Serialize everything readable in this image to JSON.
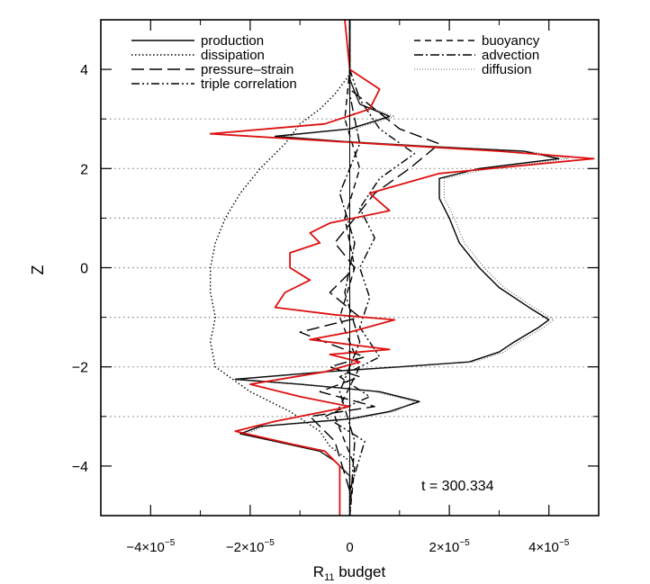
{
  "chart_data": {
    "type": "line",
    "xlabel": "R",
    "xlabel_sub": "11",
    "xlabel_rest": " budget",
    "ylabel": "Z",
    "xlim": [
      -5e-05,
      5e-05
    ],
    "ylim": [
      -5,
      5
    ],
    "x_ticks": [
      {
        "value": -4e-05,
        "label": "−4×10",
        "exp": "−5"
      },
      {
        "value": -2e-05,
        "label": "−2×10",
        "exp": "−5"
      },
      {
        "value": 0,
        "label": "0",
        "exp": ""
      },
      {
        "value": 2e-05,
        "label": "2×10",
        "exp": "−5"
      },
      {
        "value": 4e-05,
        "label": "4×10",
        "exp": "−5"
      }
    ],
    "y_ticks": [
      {
        "value": -4,
        "label": "−4"
      },
      {
        "value": -2,
        "label": "−2"
      },
      {
        "value": 0,
        "label": "0"
      },
      {
        "value": 2,
        "label": "2"
      },
      {
        "value": 4,
        "label": "4"
      }
    ],
    "hgrid_y": [
      3,
      2,
      1,
      0,
      -1,
      -2,
      -3
    ],
    "annotation": "t = 300.334",
    "legend_left": [
      "production",
      "dissipation",
      "pressure–strain",
      "triple correlation"
    ],
    "legend_right": [
      "buoyancy",
      "advection",
      "diffusion"
    ],
    "series": [
      {
        "name": "production",
        "style": "solid",
        "color": "#000000",
        "points": [
          [
            0,
            -5
          ],
          [
            0,
            -4.2
          ],
          [
            -3e-06,
            -3.9
          ],
          [
            -6e-06,
            -3.7
          ],
          [
            -1.5e-05,
            -3.5
          ],
          [
            -2.2e-05,
            -3.35
          ],
          [
            -1.8e-05,
            -3.2
          ],
          [
            0,
            -3.05
          ],
          [
            8e-06,
            -2.9
          ],
          [
            1.4e-05,
            -2.7
          ],
          [
            6e-06,
            -2.5
          ],
          [
            -1e-05,
            -2.35
          ],
          [
            -2.3e-05,
            -2.25
          ],
          [
            -5e-06,
            -2.1
          ],
          [
            1e-05,
            -2.0
          ],
          [
            2.4e-05,
            -1.9
          ],
          [
            3e-05,
            -1.7
          ],
          [
            3.3e-05,
            -1.5
          ],
          [
            3.8e-05,
            -1.2
          ],
          [
            4e-05,
            -1.05
          ],
          [
            3.6e-05,
            -0.8
          ],
          [
            3e-05,
            -0.4
          ],
          [
            2.6e-05,
            0
          ],
          [
            2.2e-05,
            0.5
          ],
          [
            2e-05,
            1.0
          ],
          [
            1.8e-05,
            1.4
          ],
          [
            1.8e-05,
            1.8
          ],
          [
            2.6e-05,
            2.0
          ],
          [
            4.2e-05,
            2.2
          ],
          [
            3.5e-05,
            2.35
          ],
          [
            1.5e-05,
            2.45
          ],
          [
            -2e-06,
            2.55
          ],
          [
            -1.5e-05,
            2.65
          ],
          [
            0,
            2.8
          ],
          [
            8e-06,
            3.05
          ],
          [
            2e-06,
            3.3
          ],
          [
            0,
            3.8
          ],
          [
            0,
            5
          ]
        ]
      },
      {
        "name": "dissipation",
        "style": "dotted",
        "color": "#000000",
        "points": [
          [
            0,
            -5
          ],
          [
            0,
            -3.9
          ],
          [
            -4e-06,
            -3.6
          ],
          [
            -6e-06,
            -3.3
          ],
          [
            -1.2e-05,
            -2.9
          ],
          [
            -2e-05,
            -2.5
          ],
          [
            -2.7e-05,
            -2.0
          ],
          [
            -2.8e-05,
            -1.5
          ],
          [
            -2.7e-05,
            -1.0
          ],
          [
            -2.8e-05,
            -0.5
          ],
          [
            -2.8e-05,
            0
          ],
          [
            -2.7e-05,
            0.5
          ],
          [
            -2.5e-05,
            1.0
          ],
          [
            -2.2e-05,
            1.5
          ],
          [
            -1.8e-05,
            2.0
          ],
          [
            -1.3e-05,
            2.5
          ],
          [
            -1e-05,
            2.9
          ],
          [
            -6e-06,
            3.2
          ],
          [
            -3e-06,
            3.5
          ],
          [
            0,
            3.9
          ],
          [
            0,
            5
          ]
        ]
      },
      {
        "name": "pressure–strain",
        "style": "longdash",
        "color": "#000000",
        "points": [
          [
            0,
            -4.5
          ],
          [
            -3e-06,
            -3.5
          ],
          [
            -8e-06,
            -3.0
          ],
          [
            5e-06,
            -2.8
          ],
          [
            -6e-06,
            -2.5
          ],
          [
            2e-06,
            -2.2
          ],
          [
            -4e-06,
            -2.0
          ],
          [
            3e-06,
            -1.8
          ],
          [
            -5e-06,
            -1.5
          ],
          [
            -1e-05,
            -1.3
          ],
          [
            2e-06,
            -1.0
          ],
          [
            -4e-06,
            -0.5
          ],
          [
            1e-06,
            0
          ],
          [
            -3e-06,
            0.5
          ],
          [
            1e-06,
            1.0
          ],
          [
            5e-06,
            1.5
          ],
          [
            1.2e-05,
            2.0
          ],
          [
            1.8e-05,
            2.5
          ],
          [
            1e-05,
            2.8
          ],
          [
            5e-06,
            3.2
          ],
          [
            0,
            3.6
          ],
          [
            0,
            5
          ]
        ]
      },
      {
        "name": "triple correlation",
        "style": "dashdotdot",
        "color": "#000000",
        "points": [
          [
            0,
            -4.5
          ],
          [
            3e-06,
            -3.5
          ],
          [
            -5e-06,
            -3.0
          ],
          [
            4e-06,
            -2.6
          ],
          [
            -2e-06,
            -2.2
          ],
          [
            6e-06,
            -1.8
          ],
          [
            2e-06,
            -1.2
          ],
          [
            4e-06,
            -0.6
          ],
          [
            2e-06,
            0
          ],
          [
            5e-06,
            0.6
          ],
          [
            2e-06,
            1.2
          ],
          [
            6e-06,
            1.8
          ],
          [
            1.3e-05,
            2.3
          ],
          [
            6e-06,
            2.8
          ],
          [
            2e-06,
            3.4
          ],
          [
            0,
            4.0
          ],
          [
            0,
            5
          ]
        ]
      },
      {
        "name": "buoyancy",
        "style": "dashed",
        "color": "#000000",
        "points": [
          [
            0,
            -5
          ],
          [
            1e-06,
            -4
          ],
          [
            -3e-06,
            -3
          ],
          [
            2e-06,
            -2
          ],
          [
            -2e-06,
            -1
          ],
          [
            1e-06,
            0
          ],
          [
            -1e-06,
            1
          ],
          [
            2e-06,
            2
          ],
          [
            -1e-06,
            3
          ],
          [
            0,
            4
          ],
          [
            0,
            5
          ]
        ]
      },
      {
        "name": "advection",
        "style": "dashdot",
        "color": "#000000",
        "points": [
          [
            0,
            -5
          ],
          [
            1e-06,
            -3.5
          ],
          [
            -2e-06,
            -2.5
          ],
          [
            2e-06,
            -1.5
          ],
          [
            -1e-06,
            -0.5
          ],
          [
            1e-06,
            0.5
          ],
          [
            -2e-06,
            1.5
          ],
          [
            2e-06,
            2.5
          ],
          [
            0,
            3.5
          ],
          [
            0,
            5
          ]
        ]
      },
      {
        "name": "diffusion",
        "style": "thindot",
        "color": "#555555",
        "points": [
          [
            0,
            -5
          ],
          [
            0,
            -4.2
          ],
          [
            -3e-06,
            -3.9
          ],
          [
            -6e-06,
            -3.7
          ],
          [
            -1.4e-05,
            -3.5
          ],
          [
            -2.1e-05,
            -3.35
          ],
          [
            -1.7e-05,
            -3.2
          ],
          [
            1e-06,
            -3.05
          ],
          [
            9e-06,
            -2.9
          ],
          [
            1.3e-05,
            -2.7
          ],
          [
            5e-06,
            -2.5
          ],
          [
            -1e-05,
            -2.35
          ],
          [
            -2.2e-05,
            -2.25
          ],
          [
            -4e-06,
            -2.1
          ],
          [
            1.1e-05,
            -2.0
          ],
          [
            2.5e-05,
            -1.9
          ],
          [
            3.1e-05,
            -1.7
          ],
          [
            3.4e-05,
            -1.5
          ],
          [
            3.9e-05,
            -1.2
          ],
          [
            4.1e-05,
            -1.05
          ],
          [
            3.7e-05,
            -0.8
          ],
          [
            3.1e-05,
            -0.4
          ],
          [
            2.7e-05,
            0
          ],
          [
            2.3e-05,
            0.5
          ],
          [
            2.1e-05,
            1.0
          ],
          [
            1.9e-05,
            1.4
          ],
          [
            1.9e-05,
            1.8
          ],
          [
            2.8e-05,
            2.0
          ],
          [
            4.4e-05,
            2.2
          ],
          [
            3.6e-05,
            2.35
          ],
          [
            1.6e-05,
            2.45
          ],
          [
            -1e-06,
            2.55
          ],
          [
            -1.4e-05,
            2.65
          ],
          [
            1e-06,
            2.8
          ],
          [
            9e-06,
            3.05
          ],
          [
            2e-06,
            3.3
          ],
          [
            0,
            3.8
          ],
          [
            0,
            5
          ]
        ]
      },
      {
        "name": "R11 budget total",
        "style": "solid",
        "color": "#dd1111",
        "points": [
          [
            -2e-06,
            -5
          ],
          [
            -2e-06,
            -4.0
          ],
          [
            -5e-06,
            -3.7
          ],
          [
            -1.2e-05,
            -3.55
          ],
          [
            -2.3e-05,
            -3.3
          ],
          [
            -1.5e-05,
            -3.1
          ],
          [
            0,
            -2.8
          ],
          [
            -1e-05,
            -2.6
          ],
          [
            -2e-05,
            -2.35
          ],
          [
            -5e-06,
            -2.1
          ],
          [
            2e-06,
            -1.9
          ],
          [
            -4e-06,
            -1.75
          ],
          [
            8e-06,
            -1.65
          ],
          [
            -8e-06,
            -1.45
          ],
          [
            0,
            -1.3
          ],
          [
            9e-06,
            -1.05
          ],
          [
            -3e-06,
            -0.95
          ],
          [
            -1.5e-05,
            -0.8
          ],
          [
            -1.3e-05,
            -0.5
          ],
          [
            -8e-06,
            -0.25
          ],
          [
            -1.2e-05,
            0
          ],
          [
            -1.2e-05,
            0.3
          ],
          [
            -6e-06,
            0.5
          ],
          [
            -8e-06,
            0.7
          ],
          [
            -4e-06,
            0.9
          ],
          [
            8e-06,
            1.15
          ],
          [
            4e-06,
            1.5
          ],
          [
            1.8e-05,
            1.9
          ],
          [
            4.9e-05,
            2.2
          ],
          [
            3e-05,
            2.35
          ],
          [
            5e-06,
            2.5
          ],
          [
            -2.8e-05,
            2.7
          ],
          [
            -5e-06,
            2.9
          ],
          [
            4e-06,
            3.2
          ],
          [
            6e-06,
            3.6
          ],
          [
            0,
            4.0
          ],
          [
            -1e-06,
            5
          ]
        ]
      }
    ]
  }
}
